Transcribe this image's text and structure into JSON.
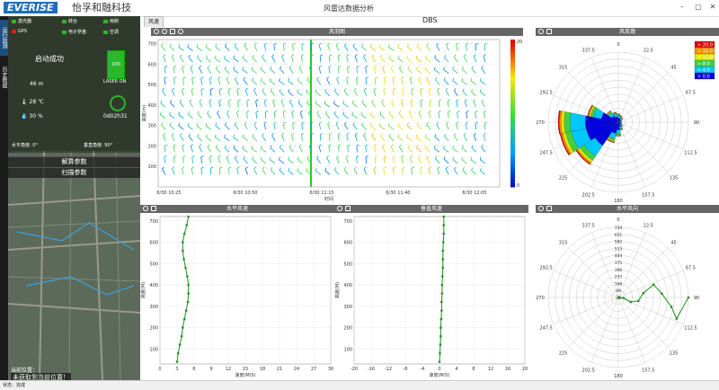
{
  "app": {
    "logo": "EVERISE",
    "company": "怡孚和融科技",
    "title": "风雷达数据分析",
    "min": "–",
    "max": "▢",
    "close": "✕"
  },
  "left_tabs": [
    "运行监测",
    "历史数据"
  ],
  "status_indicators": [
    {
      "label": "激光器",
      "color": "#2ab72a"
    },
    {
      "label": "转台",
      "color": "#2ab72a"
    },
    {
      "label": "雨刷",
      "color": "#2ab72a"
    },
    {
      "label": "GPS",
      "color": "#d62020"
    },
    {
      "label": "电子罗盘",
      "color": "#2ab72a"
    },
    {
      "label": "空调",
      "color": "#2ab72a"
    }
  ],
  "status": {
    "start_msg": "启动成功",
    "altitude": "46 m",
    "temperature": "28 ℃",
    "humidity": "30 %",
    "laser_value": "100",
    "laser_label": "LASER ON",
    "uptime": "0d02h31",
    "horizontal_angle": "水平角度: 0°",
    "vertical_angle": "垂直角度: 90°"
  },
  "buttons": {
    "solve_params": "解算参数",
    "scan_params": "扫描参数"
  },
  "position": {
    "label": "当前位置：",
    "value": "未获取到当前位置！"
  },
  "statusbar": "状态：完成",
  "tabs": {
    "active": "风速"
  },
  "mode": "DBS",
  "panels": {
    "barb": "风羽图",
    "rose": "风玫瑰",
    "hspeed": "水平风速",
    "vspeed": "垂直风速",
    "hdir": "水平风向"
  },
  "chart_data": [
    {
      "type": "barb",
      "title": "风羽图",
      "xlabel": "时间",
      "ylabel": "高度(m)",
      "x_ticks": [
        "6/30 10:25",
        "6/30 10:50",
        "6/30 11:15",
        "6/30 11:40",
        "6/30 12:05"
      ],
      "y_ticks": [
        100,
        200,
        300,
        400,
        500,
        600,
        700
      ],
      "ylim": [
        0,
        720
      ],
      "colorbar": {
        "min": 0,
        "max": 20,
        "ticks": [
          0,
          20
        ]
      },
      "highlight_column_label": "6/30 11:15"
    },
    {
      "type": "polar",
      "title": "风玫瑰",
      "angle_ticks": [
        "0",
        "22.5",
        "45",
        "67.5",
        "90",
        "112.5",
        "135",
        "157.5",
        "180",
        "202.5",
        "225",
        "247.5",
        "270",
        "292.5",
        "315",
        "337.5"
      ],
      "legend": [
        {
          "label": "> 20.0",
          "color": "#e00000"
        },
        {
          "label": "> 16.0",
          "color": "#ff8c00"
        },
        {
          "label": "> 12.0",
          "color": "#e8e800"
        },
        {
          "label": "> 8.0",
          "color": "#40d040"
        },
        {
          "label": "> 4.0",
          "color": "#00c8ff"
        },
        {
          "label": "> 0.0",
          "color": "#0000e0"
        }
      ],
      "sectors": [
        {
          "direction": 270,
          "total": 0.86
        },
        {
          "direction": 247.5,
          "total": 0.85
        },
        {
          "direction": 225,
          "total": 0.73
        },
        {
          "direction": 292.5,
          "total": 0.45
        },
        {
          "direction": 202.5,
          "total": 0.3
        },
        {
          "direction": 315,
          "total": 0.2
        },
        {
          "direction": 0,
          "total": 0.12
        },
        {
          "direction": 22.5,
          "total": 0.1
        },
        {
          "direction": 45,
          "total": 0.08
        },
        {
          "direction": 67.5,
          "total": 0.05
        },
        {
          "direction": 90,
          "total": 0.04
        },
        {
          "direction": 112.5,
          "total": 0.05
        },
        {
          "direction": 135,
          "total": 0.08
        },
        {
          "direction": 157.5,
          "total": 0.12
        },
        {
          "direction": 180,
          "total": 0.2
        },
        {
          "direction": 337.5,
          "total": 0.15
        }
      ]
    },
    {
      "type": "line",
      "title": "水平风速",
      "xlabel": "速度(M/S)",
      "ylabel": "高度(M)",
      "xlim": [
        0,
        30
      ],
      "x_ticks": [
        0,
        3,
        6,
        9,
        12,
        15,
        18,
        21,
        24,
        27,
        30
      ],
      "ylim": [
        30,
        720
      ],
      "y_ticks": [
        100,
        200,
        300,
        400,
        500,
        600,
        700
      ],
      "x": [
        3.0,
        3.2,
        3.5,
        3.8,
        4.0,
        4.3,
        4.6,
        4.9,
        5.0,
        5.0,
        4.8,
        4.5,
        4.2,
        4.0,
        4.0,
        4.3,
        4.7,
        5.0
      ],
      "y": [
        40,
        80,
        120,
        160,
        200,
        240,
        280,
        320,
        360,
        400,
        440,
        480,
        520,
        560,
        600,
        640,
        680,
        720
      ]
    },
    {
      "type": "line",
      "title": "垂直风速",
      "xlabel": "速度(M/S)",
      "ylabel": "高度(M)",
      "xlim": [
        -20,
        20
      ],
      "x_ticks": [
        -20,
        -16,
        -12,
        -8,
        -4,
        0,
        4,
        8,
        12,
        16,
        20
      ],
      "ylim": [
        30,
        720
      ],
      "y_ticks": [
        100,
        200,
        300,
        400,
        500,
        600,
        700
      ],
      "x": [
        0.0,
        0.1,
        0.2,
        0.3,
        0.3,
        0.4,
        0.5,
        0.5,
        0.6,
        0.6,
        0.7,
        0.8,
        0.8,
        0.8,
        0.9,
        1.0,
        1.0,
        1.0
      ],
      "y": [
        40,
        80,
        120,
        160,
        200,
        240,
        280,
        320,
        360,
        400,
        440,
        480,
        520,
        560,
        600,
        640,
        680,
        720
      ]
    },
    {
      "type": "polar_line",
      "title": "水平风向",
      "angle_ticks": [
        "0",
        "22.5",
        "45",
        "67.5",
        "90",
        "112.5",
        "135",
        "157.5",
        "180",
        "202.5",
        "225",
        "247.5",
        "270",
        "292.5",
        "315",
        "337.5"
      ],
      "radial_ticks": [
        30,
        99,
        168,
        237,
        306,
        375,
        444,
        513,
        582,
        651,
        720
      ],
      "radial_range": [
        30,
        720
      ],
      "points": [
        {
          "direction": 90,
          "height": 40
        },
        {
          "direction": 95,
          "height": 80
        },
        {
          "direction": 110,
          "height": 160
        },
        {
          "direction": 100,
          "height": 230
        },
        {
          "direction": 80,
          "height": 280
        },
        {
          "direction": 70,
          "height": 400
        },
        {
          "direction": 85,
          "height": 460
        },
        {
          "direction": 100,
          "height": 560
        },
        {
          "direction": 110,
          "height": 640
        },
        {
          "direction": 90,
          "height": 720
        }
      ]
    }
  ]
}
